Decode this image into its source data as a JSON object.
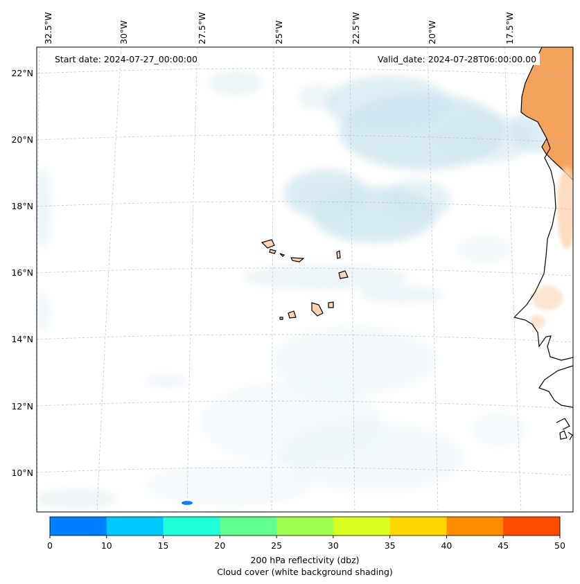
{
  "map": {
    "start_date": "Start date: 2024-07-27_00:00:00",
    "valid_date": "Valid_date: 2024-07-28T06:00:00.00",
    "lon_labels": [
      "32.5°W",
      "30°W",
      "27.5°W",
      "25°W",
      "22.5°W",
      "20°W",
      "17.5°W"
    ],
    "lat_labels": [
      "22°N",
      "20°N",
      "18°N",
      "16°N",
      "14°N",
      "12°N",
      "10°N"
    ],
    "colors": {
      "cloud": "#cfe6ef",
      "land": "#f4a35c",
      "land_light": "#fbd3b2",
      "coast": "#000000",
      "grid": "#bbbbbb"
    }
  },
  "colorbar": {
    "ticks": [
      "0",
      "10",
      "15",
      "20",
      "25",
      "30",
      "35",
      "40",
      "45",
      "50"
    ],
    "colors": [
      "#0080ff",
      "#00c8ff",
      "#20ffd8",
      "#60ff90",
      "#a0ff50",
      "#d8ff20",
      "#ffd800",
      "#ff8c00",
      "#ff4c00"
    ],
    "title_line1": "200 hPa reflectivity (dbz)",
    "title_line2": "Cloud cover (white background shading)"
  }
}
